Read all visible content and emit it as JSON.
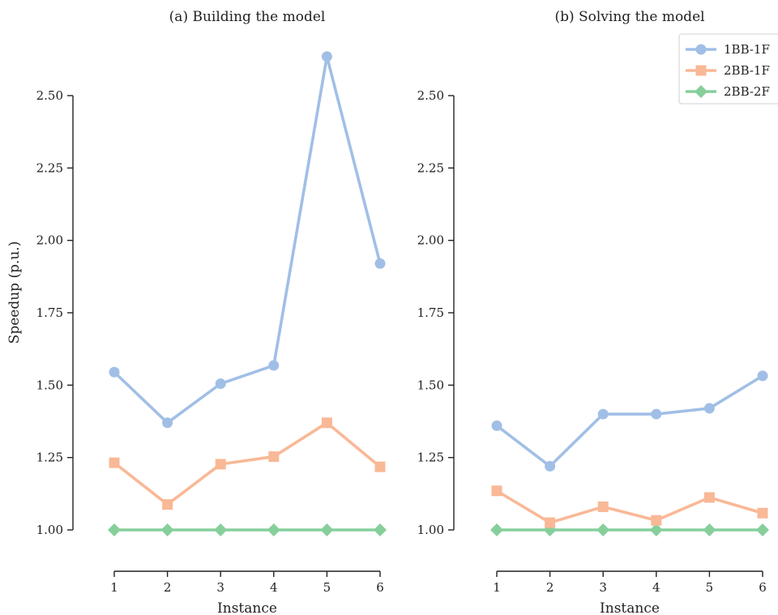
{
  "chart_data": [
    {
      "type": "line",
      "title": "(a) Building the model",
      "xlabel": "Instance",
      "ylabel": "Speedup (p.u.)",
      "x": [
        1,
        2,
        3,
        4,
        5,
        6
      ],
      "xticks": [
        "1",
        "2",
        "3",
        "4",
        "5",
        "6"
      ],
      "ylim": [
        0.9,
        2.68
      ],
      "yticks": [
        "1.00",
        "1.25",
        "1.50",
        "1.75",
        "2.00",
        "2.25",
        "2.50"
      ],
      "grid": false,
      "series": [
        {
          "name": "1BB-1F",
          "color": "#a1bfe6",
          "marker": "circle",
          "values": [
            1.545,
            1.37,
            1.505,
            1.568,
            2.635,
            1.92
          ]
        },
        {
          "name": "2BB-1F",
          "color": "#f9b896",
          "marker": "square",
          "values": [
            1.232,
            1.088,
            1.227,
            1.253,
            1.37,
            1.218
          ]
        },
        {
          "name": "2BB-2F",
          "color": "#86cf9b",
          "marker": "diamond",
          "values": [
            1.0,
            1.0,
            1.0,
            1.0,
            1.0,
            1.0
          ]
        }
      ]
    },
    {
      "type": "line",
      "title": "(b) Solving the model",
      "xlabel": "Instance",
      "ylabel": "",
      "x": [
        1,
        2,
        3,
        4,
        5,
        6
      ],
      "xticks": [
        "1",
        "2",
        "3",
        "4",
        "5",
        "6"
      ],
      "ylim": [
        0.9,
        2.68
      ],
      "yticks": [
        "1.00",
        "1.25",
        "1.50",
        "1.75",
        "2.00",
        "2.25",
        "2.50"
      ],
      "grid": false,
      "legend": "top-right",
      "series": [
        {
          "name": "1BB-1F",
          "color": "#a1bfe6",
          "marker": "circle",
          "values": [
            1.36,
            1.22,
            1.4,
            1.4,
            1.42,
            1.532
          ]
        },
        {
          "name": "2BB-1F",
          "color": "#f9b896",
          "marker": "square",
          "values": [
            1.135,
            1.025,
            1.08,
            1.033,
            1.112,
            1.058
          ]
        },
        {
          "name": "2BB-2F",
          "color": "#86cf9b",
          "marker": "diamond",
          "values": [
            1.0,
            1.0,
            1.0,
            1.0,
            1.0,
            1.0
          ]
        }
      ]
    }
  ]
}
